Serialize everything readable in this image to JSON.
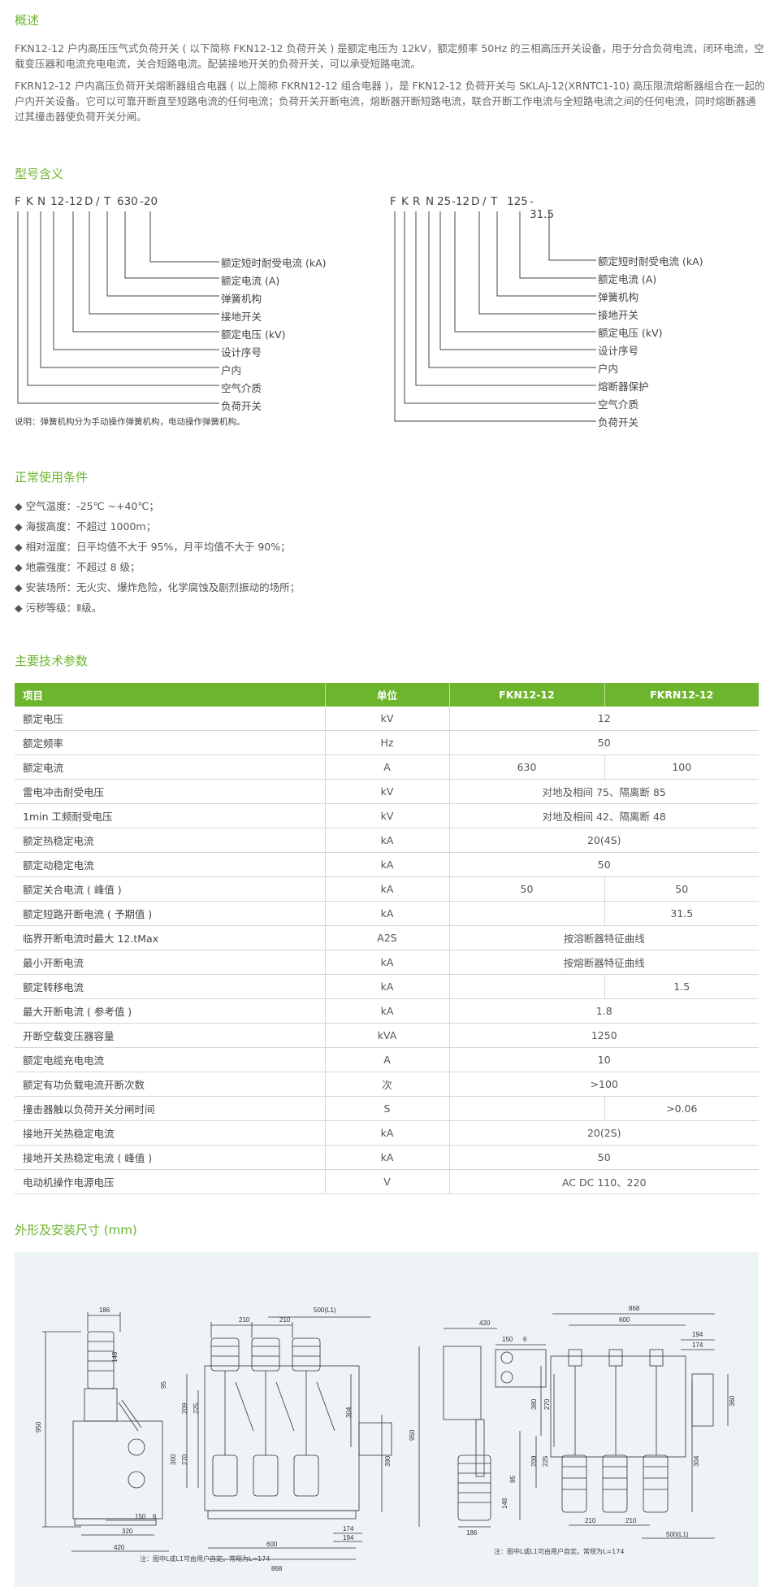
{
  "overview": {
    "title": "概述",
    "p1": "FKN12-12 户内高压压气式负荷开关 ( 以下简称 FKN12-12 负荷开关 ) 是额定电压为 12kV，额定频率 50Hz 的三相高压开关设备，用于分合负荷电流，闭环电流，空载变压器和电流充电电流，关合短路电流。配装接地开关的负荷开关，可以承受短路电流。",
    "p2": "FKRN12-12 户内高压负荷开关熔断器组合电器 ( 以上简称 FKRN12-12 组合电器 )，是 FKN12-12 负荷开关与 SKLAJ-12(XRNTC1-10) 高压限流熔断器组合在一起的户内开关设备。它可以可靠开断直至短路电流的任何电流；负荷开关开断电流，熔断器开断短路电流，联合开断工作电流与全短路电流之间的任何电流，同时熔断器通过其撞击器使负荷开关分闸。"
  },
  "model": {
    "title": "型号含义",
    "left": {
      "parts": [
        "F",
        "K",
        "N",
        "12",
        "-12",
        "D",
        "/",
        "T",
        "630",
        "-20"
      ],
      "labels": [
        "额定短时耐受电流 (kA)",
        "额定电流 (A)",
        "弹簧机构",
        "接地开关",
        "额定电压 (kV)",
        "设计序号",
        "户内",
        "空气介质",
        "负荷开关"
      ]
    },
    "right": {
      "parts": [
        "F",
        "K",
        "R",
        "N",
        "25",
        "-12",
        "D",
        "/",
        "T",
        "125",
        "- 31.5"
      ],
      "labels": [
        "额定短时耐受电流 (kA)",
        "额定电流 (A)",
        "弹簧机构",
        "接地开关",
        "额定电压 (kV)",
        "设计序号",
        "户内",
        "熔断器保护",
        "空气介质",
        "负荷开关"
      ]
    },
    "note": "说明：弹簧机构分为手动操作弹簧机构，电动操作弹簧机构。"
  },
  "conditions": {
    "title": "正常使用条件",
    "bullet": "◆",
    "items": [
      "空气温度：-25℃ ~+40℃；",
      "海拔高度：不超过 1000m；",
      "相对湿度：日平均值不大于 95%，月平均值不大于 90%；",
      "地震强度：不超过 8 级；",
      "安装场所：无火灾、爆炸危险，化学腐蚀及剧烈振动的场所；",
      "污秽等级：Ⅱ级。"
    ]
  },
  "params": {
    "title": "主要技术参数",
    "headers": [
      "项目",
      "单位",
      "FKN12-12",
      "FKRN12-12"
    ],
    "rows": [
      {
        "name": "额定电压",
        "unit": "kV",
        "merged": "12"
      },
      {
        "name": "额定频率",
        "unit": "Hz",
        "merged": "50"
      },
      {
        "name": "额定电流",
        "unit": "A",
        "a": "630",
        "b": "100"
      },
      {
        "name": "雷电冲击耐受电压",
        "unit": "kV",
        "merged": "对地及相间 75、隔离断 85"
      },
      {
        "name": "1min 工频耐受电压",
        "unit": "kV",
        "merged": "对地及相间 42、隔离断 48"
      },
      {
        "name": "额定热稳定电流",
        "unit": "kA",
        "merged": "20(4S)"
      },
      {
        "name": "额定动稳定电流",
        "unit": "kA",
        "merged": "50"
      },
      {
        "name": "额定关合电流 ( 峰值 )",
        "unit": "kA",
        "a": "50",
        "b": "50"
      },
      {
        "name": "额定短路开断电流 ( 予期值 )",
        "unit": "kA",
        "a": "",
        "b": "31.5"
      },
      {
        "name": "临界开断电流时最大 12.tMax",
        "unit": "A2S",
        "merged": "按溶断器特征曲线"
      },
      {
        "name": "最小开断电流",
        "unit": "kA",
        "merged": "按熔断器特征曲线"
      },
      {
        "name": "额定转移电流",
        "unit": "kA",
        "a": "",
        "b": "1.5"
      },
      {
        "name": "最大开断电流 ( 参考值 )",
        "unit": "kA",
        "merged": "1.8"
      },
      {
        "name": "开断空载变压器容量",
        "unit": "kVA",
        "merged": "1250"
      },
      {
        "name": "额定电缆充电电流",
        "unit": "A",
        "merged": "10"
      },
      {
        "name": "额定有功负载电流开断次数",
        "unit": "次",
        "merged": ">100"
      },
      {
        "name": "撞击器触以负荷开关分闸时间",
        "unit": "S",
        "a": "",
        "b": ">0.06"
      },
      {
        "name": "接地开关热稳定电流",
        "unit": "kA",
        "merged": "20(2S)"
      },
      {
        "name": "接地开关热稳定电流 ( 峰值 )",
        "unit": "kA",
        "merged": "50"
      },
      {
        "name": "电动机操作电源电压",
        "unit": "V",
        "merged": "AC DC 110、220"
      }
    ]
  },
  "drawings": {
    "title": "外形及安装尺寸 (mm)",
    "left_dims": {
      "d186": "186",
      "d210a": "210",
      "d210b": "210",
      "d500": "500(L1)",
      "d950": "950",
      "d148": "148",
      "d304": "304",
      "d390": "390",
      "d174": "174",
      "d194": "194",
      "d150": "150",
      "d320": "320",
      "d420": "420",
      "d600": "600",
      "d868": "868",
      "d209": "209",
      "d225": "225",
      "d270": "270",
      "d300": "300",
      "d6": "6",
      "d95": "95"
    },
    "left_note": "注：图中L或L1可由用户自定。常规为L=174",
    "right_dims": {
      "d420": "420",
      "d868": "868",
      "d600": "600",
      "d194": "194",
      "d174": "174",
      "d150": "150",
      "d6": "6",
      "d950": "950",
      "d380": "380",
      "d270": "270",
      "d360": "360",
      "d209": "209",
      "d225": "225",
      "d304": "304",
      "d95": "95",
      "d148": "148",
      "d186": "186",
      "d210a": "210",
      "d210b": "210",
      "d500": "500(L1)"
    },
    "right_note": "注：图中L或L1可由用户自定。常规为L=174"
  }
}
